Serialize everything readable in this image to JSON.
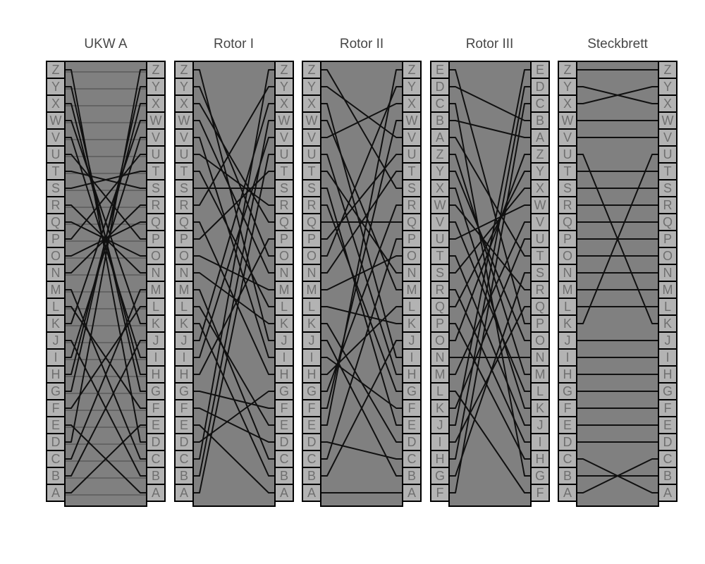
{
  "figure": {
    "background": "#ffffff",
    "description": "Enigma machine wiring diagram with reflector, three rotors and plugboard"
  },
  "style": {
    "panel_bg": "#808080",
    "box_fill": "#b3b3b3",
    "box_border": "#000000",
    "letter_color": "#6f6f6f",
    "title_color": "#474747",
    "wire_color": "#101010",
    "guide_color": "#5a5a5a"
  },
  "panels": [
    {
      "id": "ukw-a",
      "title": "UKW A",
      "left_letters": "ZYXWVUTSRQPONMLKJIHGFEDCBA",
      "right_letters": "ZYXWVUTSRQPONMLKJIHGFEDCBA",
      "row_guides": true,
      "wires": [
        "ZD",
        "YG",
        "XH",
        "WK",
        "VI",
        "UP",
        "TS",
        "ST",
        "RN",
        "QO",
        "PU",
        "OQ",
        "NR",
        "MC",
        "LF",
        "KW",
        "JB",
        "IV",
        "HX",
        "GY",
        "FL",
        "EA",
        "DZ",
        "CM",
        "BJ",
        "AE"
      ]
    },
    {
      "id": "rotor-1",
      "title": "Rotor I",
      "left_letters": "ZYXWVUTSRQPONMLKJIHGFEDCBA",
      "right_letters": "ZYXWVUTSRQPONMLKJIHGFEDCBA",
      "row_guides": false,
      "wires": [
        "EA",
        "KB",
        "MC",
        "FD",
        "LE",
        "GF",
        "DG",
        "QH",
        "VI",
        "ZJ",
        "NK",
        "TL",
        "OM",
        "WN",
        "YO",
        "HP",
        "XQ",
        "UR",
        "SS",
        "PT",
        "AU",
        "IV",
        "BW",
        "JX",
        "RY",
        "CZ"
      ]
    },
    {
      "id": "rotor-2",
      "title": "Rotor II",
      "left_letters": "ZYXWVUTSRQPONMLKJIHGFEDCBA",
      "right_letters": "ZYXWVUTSRQPONMLKJIHGFEDCBA",
      "row_guides": false,
      "wires": [
        "AA",
        "JB",
        "DC",
        "KD",
        "SE",
        "IF",
        "RG",
        "UH",
        "XI",
        "BJ",
        "LK",
        "HL",
        "WM",
        "TN",
        "MO",
        "CP",
        "QQ",
        "GR",
        "ZS",
        "NT",
        "PU",
        "YV",
        "FW",
        "VX",
        "OY",
        "EZ"
      ]
    },
    {
      "id": "rotor-3",
      "title": "Rotor III",
      "left_letters": "EDCBAZYXWVUTSRQPONMLKJIHGF",
      "right_letters": "EDCBAZYXWVUTSRQPONMLKJIHGF",
      "row_guides": false,
      "wires": [
        "BA",
        "DB",
        "FC",
        "HD",
        "JE",
        "LF",
        "CG",
        "PH",
        "RI",
        "TJ",
        "XK",
        "VL",
        "ZM",
        "NN",
        "YO",
        "EP",
        "IQ",
        "WR",
        "GS",
        "AT",
        "KU",
        "MV",
        "UW",
        "SX",
        "QY",
        "OZ"
      ]
    },
    {
      "id": "steckbrett",
      "title": "Steckbrett",
      "left_letters": "ZYXWVUTSRQPONMLKJIHGFEDCBA",
      "right_letters": "ZYXWVUTSRQPONMLKJIHGFEDCBA",
      "row_guides": false,
      "wires": [
        "ZZ",
        "YX",
        "XY",
        "WW",
        "VV",
        "UK",
        "TT",
        "SS",
        "RR",
        "QQ",
        "PP",
        "OO",
        "NN",
        "MM",
        "LL",
        "KU",
        "JJ",
        "II",
        "HH",
        "GG",
        "FF",
        "EE",
        "DD",
        "CA",
        "BB",
        "AC"
      ]
    }
  ]
}
